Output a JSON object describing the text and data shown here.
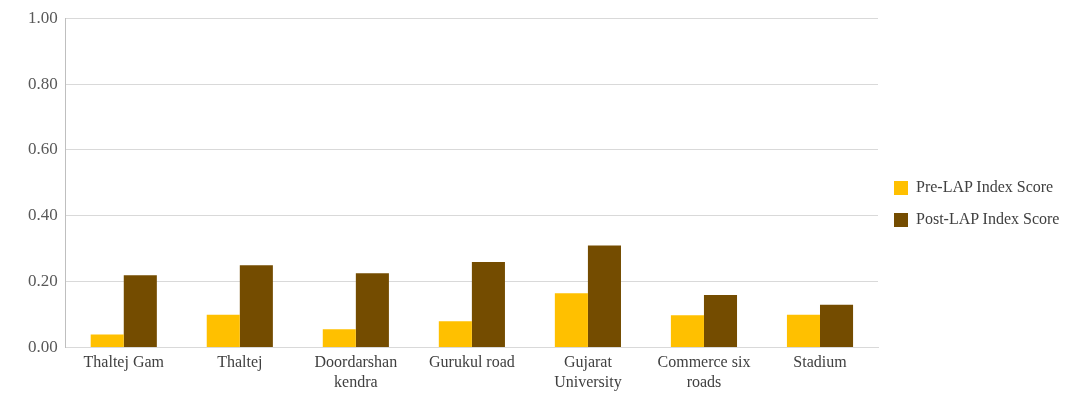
{
  "chart_data": {
    "type": "bar",
    "categories": [
      "Thaltej Gam",
      "Thaltej",
      "Doordarshan kendra",
      "Gurukul road",
      "Gujarat University",
      "Commerce six roads",
      "Stadium"
    ],
    "series": [
      {
        "name": "Pre-LAP Index Score",
        "color": "#ffc000",
        "values": [
          0.04,
          0.1,
          0.056,
          0.08,
          0.165,
          0.098,
          0.1
        ]
      },
      {
        "name": "Post-LAP Index Score",
        "color": "#744c00",
        "values": [
          0.22,
          0.25,
          0.226,
          0.26,
          0.31,
          0.16,
          0.13
        ]
      }
    ],
    "ylim": [
      0,
      1
    ],
    "yticks": [
      {
        "value": 0,
        "label": "0.00"
      },
      {
        "value": 0.2,
        "label": "0.20"
      },
      {
        "value": 0.4,
        "label": "0.40"
      },
      {
        "value": 0.6,
        "label": "0.60"
      },
      {
        "value": 0.8,
        "label": "0.80"
      },
      {
        "value": 1,
        "label": "1.00"
      }
    ],
    "grid": "y",
    "legend": "right"
  }
}
